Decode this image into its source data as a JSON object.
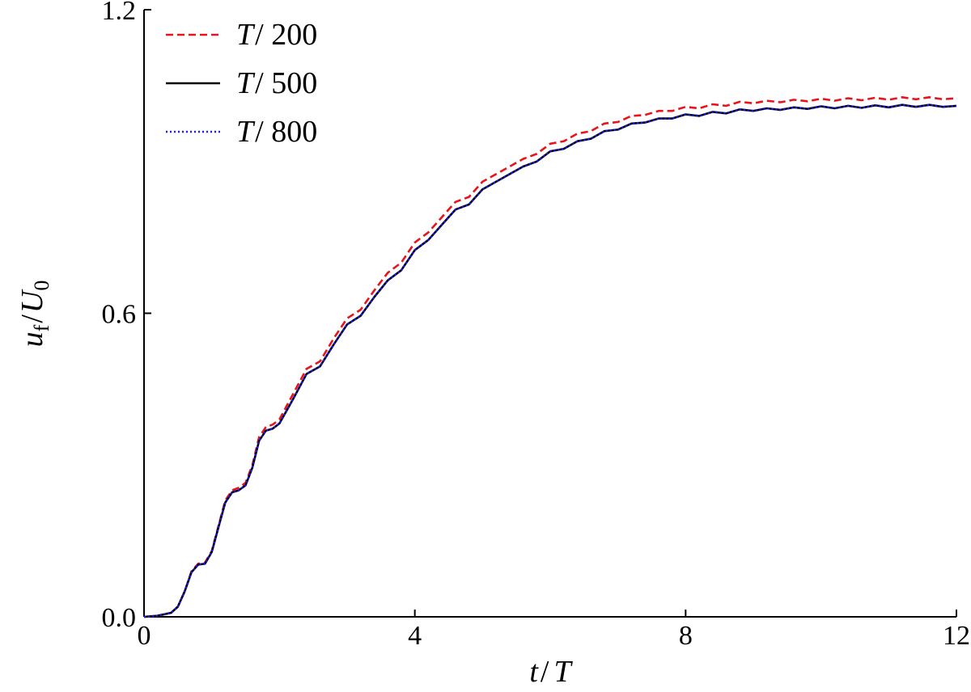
{
  "chart_data": {
    "type": "line",
    "title": "",
    "xlabel": {
      "var": "t",
      "sep": "/",
      "unit": "T"
    },
    "ylabel": {
      "var": "u",
      "sub": "f",
      "sep": "/",
      "unit": "U",
      "unit_sub": "0"
    },
    "xlim": [
      0,
      12
    ],
    "ylim": [
      0,
      1.2
    ],
    "xticks": [
      0,
      4,
      8,
      12
    ],
    "xtick_labels": [
      "0",
      "4",
      "8",
      "12"
    ],
    "yticks": [
      0,
      0.6,
      1.2
    ],
    "ytick_labels": [
      "0.0",
      "0.6",
      "1.2"
    ],
    "grid": false,
    "legend_position": "top-left",
    "series": [
      {
        "name": "T / 200",
        "name_parts": {
          "var": "T",
          "rest": "/ 200"
        },
        "color": "#e8141c",
        "dash": "dashed",
        "x": [
          0,
          0.2,
          0.4,
          0.5,
          0.6,
          0.7,
          0.8,
          0.9,
          1.0,
          1.1,
          1.2,
          1.3,
          1.4,
          1.5,
          1.6,
          1.7,
          1.8,
          1.9,
          2.0,
          2.2,
          2.4,
          2.6,
          2.8,
          3.0,
          3.2,
          3.4,
          3.6,
          3.8,
          4.0,
          4.2,
          4.4,
          4.6,
          4.8,
          5.0,
          5.2,
          5.4,
          5.6,
          5.8,
          6.0,
          6.2,
          6.4,
          6.6,
          6.8,
          7.0,
          7.2,
          7.4,
          7.6,
          7.8,
          8.0,
          8.2,
          8.4,
          8.6,
          8.8,
          9.0,
          9.2,
          9.4,
          9.6,
          9.8,
          10.0,
          10.2,
          10.4,
          10.6,
          10.8,
          11.0,
          11.2,
          11.4,
          11.6,
          11.8,
          12.0
        ],
        "y": [
          0,
          0.002,
          0.008,
          0.02,
          0.05,
          0.09,
          0.105,
          0.107,
          0.13,
          0.18,
          0.23,
          0.25,
          0.255,
          0.265,
          0.3,
          0.355,
          0.375,
          0.38,
          0.39,
          0.44,
          0.49,
          0.505,
          0.55,
          0.59,
          0.607,
          0.645,
          0.68,
          0.7,
          0.74,
          0.76,
          0.79,
          0.82,
          0.83,
          0.86,
          0.875,
          0.89,
          0.905,
          0.915,
          0.935,
          0.94,
          0.955,
          0.96,
          0.975,
          0.978,
          0.99,
          0.992,
          1.0,
          1.0,
          1.008,
          1.005,
          1.013,
          1.01,
          1.018,
          1.015,
          1.02,
          1.017,
          1.022,
          1.019,
          1.024,
          1.02,
          1.025,
          1.021,
          1.026,
          1.022,
          1.027,
          1.023,
          1.027,
          1.023,
          1.025
        ]
      },
      {
        "name": "T / 500",
        "name_parts": {
          "var": "T",
          "rest": "/ 500"
        },
        "color": "#000000",
        "dash": "solid",
        "x": [
          0,
          0.2,
          0.4,
          0.5,
          0.6,
          0.7,
          0.8,
          0.9,
          1.0,
          1.1,
          1.2,
          1.3,
          1.4,
          1.5,
          1.6,
          1.7,
          1.8,
          1.9,
          2.0,
          2.2,
          2.4,
          2.6,
          2.8,
          3.0,
          3.2,
          3.4,
          3.6,
          3.8,
          4.0,
          4.2,
          4.4,
          4.6,
          4.8,
          5.0,
          5.2,
          5.4,
          5.6,
          5.8,
          6.0,
          6.2,
          6.4,
          6.6,
          6.8,
          7.0,
          7.2,
          7.4,
          7.6,
          7.8,
          8.0,
          8.2,
          8.4,
          8.6,
          8.8,
          9.0,
          9.2,
          9.4,
          9.6,
          9.8,
          10.0,
          10.2,
          10.4,
          10.6,
          10.8,
          11.0,
          11.2,
          11.4,
          11.6,
          11.8,
          12.0
        ],
        "y": [
          0,
          0.002,
          0.008,
          0.02,
          0.05,
          0.088,
          0.103,
          0.105,
          0.128,
          0.177,
          0.226,
          0.246,
          0.25,
          0.26,
          0.295,
          0.348,
          0.368,
          0.372,
          0.382,
          0.43,
          0.48,
          0.495,
          0.538,
          0.578,
          0.595,
          0.632,
          0.665,
          0.685,
          0.725,
          0.745,
          0.775,
          0.805,
          0.815,
          0.845,
          0.86,
          0.875,
          0.89,
          0.9,
          0.92,
          0.925,
          0.94,
          0.945,
          0.96,
          0.963,
          0.975,
          0.977,
          0.985,
          0.985,
          0.993,
          0.99,
          0.998,
          0.995,
          1.003,
          1.0,
          1.005,
          1.002,
          1.007,
          1.004,
          1.009,
          1.005,
          1.01,
          1.006,
          1.011,
          1.007,
          1.012,
          1.008,
          1.012,
          1.008,
          1.01
        ]
      },
      {
        "name": "T / 800",
        "name_parts": {
          "var": "T",
          "rest": "/ 800"
        },
        "color": "#1a1aff",
        "dash": "dotted",
        "x": [
          0,
          0.2,
          0.4,
          0.5,
          0.6,
          0.7,
          0.8,
          0.9,
          1.0,
          1.1,
          1.2,
          1.3,
          1.4,
          1.5,
          1.6,
          1.7,
          1.8,
          1.9,
          2.0,
          2.2,
          2.4,
          2.6,
          2.8,
          3.0,
          3.2,
          3.4,
          3.6,
          3.8,
          4.0,
          4.2,
          4.4,
          4.6,
          4.8,
          5.0,
          5.2,
          5.4,
          5.6,
          5.8,
          6.0,
          6.2,
          6.4,
          6.6,
          6.8,
          7.0,
          7.2,
          7.4,
          7.6,
          7.8,
          8.0,
          8.2,
          8.4,
          8.6,
          8.8,
          9.0,
          9.2,
          9.4,
          9.6,
          9.8,
          10.0,
          10.2,
          10.4,
          10.6,
          10.8,
          11.0,
          11.2,
          11.4,
          11.6,
          11.8,
          12.0
        ],
        "y": [
          0,
          0.002,
          0.008,
          0.02,
          0.05,
          0.088,
          0.103,
          0.105,
          0.128,
          0.177,
          0.226,
          0.246,
          0.25,
          0.26,
          0.295,
          0.348,
          0.368,
          0.372,
          0.382,
          0.43,
          0.48,
          0.495,
          0.538,
          0.578,
          0.595,
          0.632,
          0.665,
          0.685,
          0.725,
          0.745,
          0.775,
          0.805,
          0.815,
          0.845,
          0.86,
          0.875,
          0.89,
          0.9,
          0.92,
          0.925,
          0.94,
          0.945,
          0.96,
          0.963,
          0.975,
          0.977,
          0.985,
          0.985,
          0.993,
          0.99,
          0.998,
          0.995,
          1.003,
          1.0,
          1.005,
          1.002,
          1.007,
          1.004,
          1.009,
          1.005,
          1.01,
          1.006,
          1.011,
          1.007,
          1.012,
          1.008,
          1.012,
          1.008,
          1.01
        ]
      }
    ]
  }
}
